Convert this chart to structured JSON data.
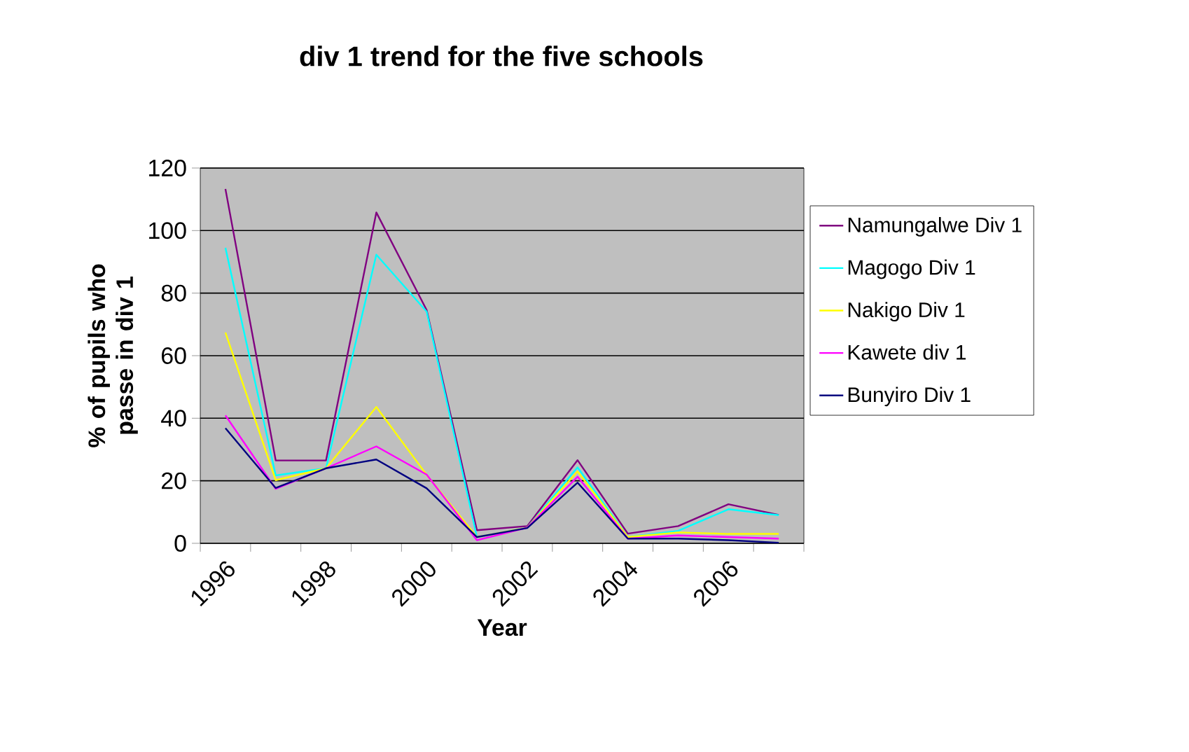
{
  "chart_data": {
    "type": "line",
    "title": "div 1 trend for the five schools",
    "xlabel": "Year",
    "ylabel": "% of pupils who passe in div 1",
    "categories": [
      "1996",
      null,
      "1998",
      null,
      "2000",
      null,
      "2002",
      null,
      "2004",
      null,
      "2006",
      null
    ],
    "series": [
      {
        "name": "Namungalwe Div 1",
        "color": "#800080",
        "values": [
          113.3,
          26.5,
          26.5,
          105.8,
          74.6,
          4.2,
          5.5,
          26.6,
          3.1,
          5.5,
          12.5,
          9.1
        ]
      },
      {
        "name": "Magogo Div 1",
        "color": "#00ffff",
        "values": [
          94.5,
          21.7,
          24,
          92.3,
          74.1,
          2,
          5,
          24.3,
          2,
          4,
          10.9,
          9
        ]
      },
      {
        "name": "Nakigo Div 1",
        "color": "#ffff00",
        "values": [
          67.4,
          20.2,
          24,
          43.6,
          21.9,
          2,
          5,
          23,
          2,
          3.5,
          3,
          3
        ]
      },
      {
        "name": "Kawete div 1",
        "color": "#ff00ff",
        "values": [
          40.9,
          17.4,
          24,
          31,
          22,
          1,
          5,
          21.3,
          1.5,
          2.5,
          2,
          1.5
        ]
      },
      {
        "name": "Bunyiro Div 1",
        "color": "#000080",
        "values": [
          36.8,
          17.7,
          24,
          26.8,
          17.6,
          2,
          4.9,
          19.4,
          1.5,
          1.5,
          1,
          0.2
        ]
      }
    ],
    "ylim": [
      0,
      120
    ],
    "yticks": [
      0,
      20,
      40,
      60,
      80,
      100,
      120
    ],
    "grid": "y",
    "legend": "right"
  }
}
